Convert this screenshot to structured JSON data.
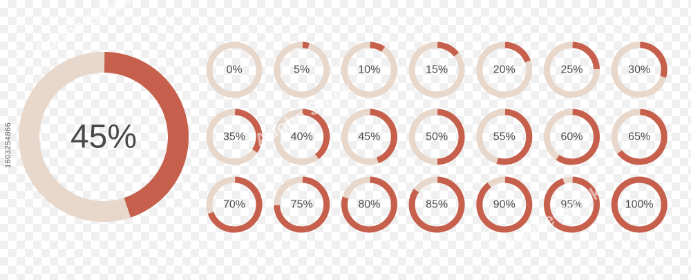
{
  "colors": {
    "filled": "#c65f4b",
    "track": "#e8d7cb",
    "text": "#4a4a4a"
  },
  "main_indicator": {
    "value": 45,
    "label": "45%"
  },
  "indicators": [
    {
      "value": 0,
      "label": "0%"
    },
    {
      "value": 5,
      "label": "5%"
    },
    {
      "value": 10,
      "label": "10%"
    },
    {
      "value": 15,
      "label": "15%"
    },
    {
      "value": 20,
      "label": "20%"
    },
    {
      "value": 25,
      "label": "25%"
    },
    {
      "value": 30,
      "label": "30%"
    },
    {
      "value": 35,
      "label": "35%"
    },
    {
      "value": 40,
      "label": "40%"
    },
    {
      "value": 45,
      "label": "45%"
    },
    {
      "value": 50,
      "label": "50%"
    },
    {
      "value": 55,
      "label": "55%"
    },
    {
      "value": 60,
      "label": "60%"
    },
    {
      "value": 65,
      "label": "65%"
    },
    {
      "value": 70,
      "label": "70%"
    },
    {
      "value": 75,
      "label": "75%"
    },
    {
      "value": 80,
      "label": "80%"
    },
    {
      "value": 85,
      "label": "85%"
    },
    {
      "value": 90,
      "label": "90%"
    },
    {
      "value": 95,
      "label": "95%"
    },
    {
      "value": 100,
      "label": "100%"
    }
  ],
  "stock_id_text": "1603254866",
  "watermark_text": "Adobe Stock"
}
